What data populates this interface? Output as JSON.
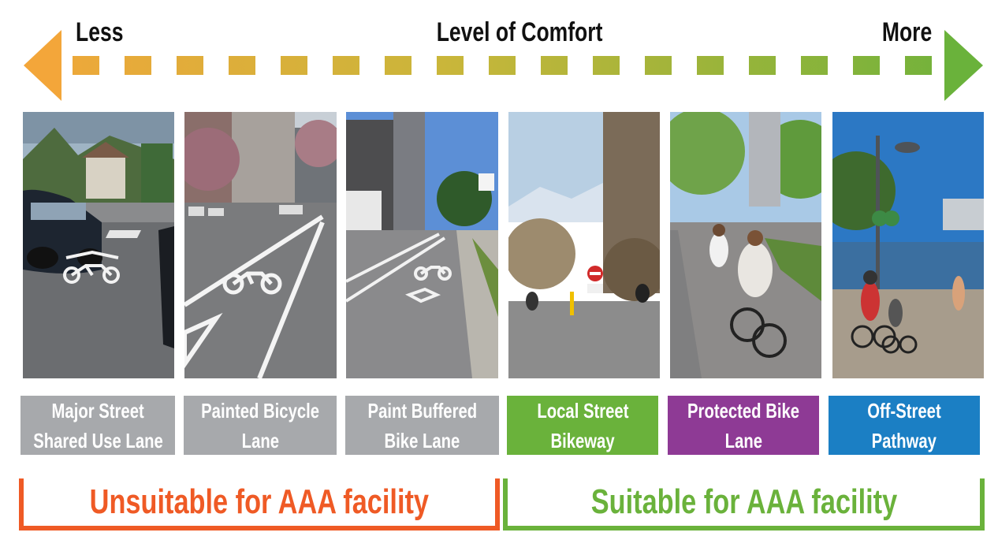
{
  "scale": {
    "left_label": "Less",
    "center_label": "Level of Comfort",
    "right_label": "More",
    "left_color": "#f3a63a",
    "right_color": "#6ab23b"
  },
  "facilities": [
    {
      "label_line1": "Major Street",
      "label_line2": "Shared Use Lane",
      "color": "#a7a9ac"
    },
    {
      "label_line1": "Painted Bicycle",
      "label_line2": "Lane",
      "color": "#a7a9ac"
    },
    {
      "label_line1": "Paint Buffered",
      "label_line2": "Bike Lane",
      "color": "#a7a9ac"
    },
    {
      "label_line1": "Local Street",
      "label_line2": "Bikeway",
      "color": "#6ab23b"
    },
    {
      "label_line1": "Protected Bike",
      "label_line2": "Lane",
      "color": "#8e3a95"
    },
    {
      "label_line1": "Off-Street",
      "label_line2": "Pathway",
      "color": "#1b7fc4"
    }
  ],
  "groups": {
    "unsuitable": {
      "label": "Unsuitable for AAA facility",
      "color": "#ef5a25"
    },
    "suitable": {
      "label": "Suitable for AAA facility",
      "color": "#6ab23b"
    }
  }
}
